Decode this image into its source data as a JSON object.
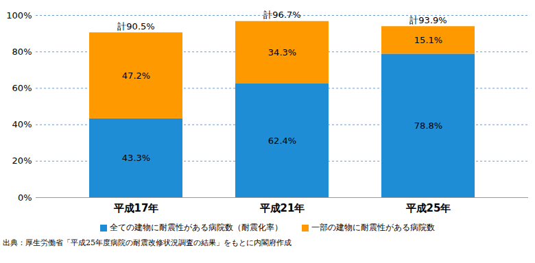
{
  "chart_data": {
    "type": "bar",
    "stacked": true,
    "categories": [
      "平成17年",
      "平成21年",
      "平成25年"
    ],
    "series": [
      {
        "name": "全ての建物に耐震性がある病院数（耐震化率）",
        "color": "#1f8dd6",
        "values": [
          43.3,
          62.4,
          78.8
        ],
        "value_labels": [
          "43.3%",
          "62.4%",
          "78.8%"
        ]
      },
      {
        "name": "一部の建物に耐震性がある病院数",
        "color": "#ff9900",
        "values": [
          47.2,
          34.3,
          15.1
        ],
        "value_labels": [
          "47.2%",
          "34.3%",
          "15.1%"
        ]
      }
    ],
    "total_labels": [
      "計90.5%",
      "計96.7%",
      "計93.9%"
    ],
    "ylim": [
      0,
      100
    ],
    "yticks": [
      {
        "value": 0,
        "label": "0%"
      },
      {
        "value": 20,
        "label": "20%"
      },
      {
        "value": 40,
        "label": "40%"
      },
      {
        "value": 60,
        "label": "60%"
      },
      {
        "value": 80,
        "label": "80%"
      },
      {
        "value": 100,
        "label": "100%"
      }
    ],
    "grid": true,
    "data_labels": true,
    "legend": "bottom",
    "caption": "出典：厚生労働省「平成25年度病院の耐震改修状況調査の結果」をもとに内閣府作成"
  }
}
